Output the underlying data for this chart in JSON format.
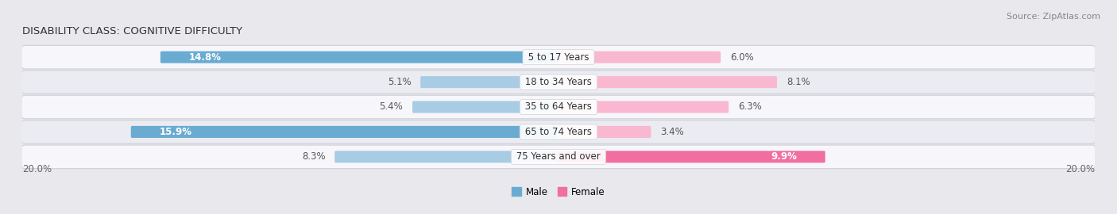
{
  "title": "DISABILITY CLASS: COGNITIVE DIFFICULTY",
  "source": "Source: ZipAtlas.com",
  "categories": [
    "5 to 17 Years",
    "18 to 34 Years",
    "35 to 64 Years",
    "65 to 74 Years",
    "75 Years and over"
  ],
  "male_values": [
    14.8,
    5.1,
    5.4,
    15.9,
    8.3
  ],
  "female_values": [
    6.0,
    8.1,
    6.3,
    3.4,
    9.9
  ],
  "male_color_dark": "#6aabd2",
  "male_color_light": "#a8cce4",
  "female_color_dark": "#f06fa0",
  "female_color_light": "#f9b8d0",
  "axis_max": 20.0,
  "fig_bg": "#e8e8ed",
  "row_bg_odd": "#f7f7fb",
  "row_bg_even": "#ebebf2",
  "label_fontsize": 8.5,
  "title_fontsize": 9.5,
  "source_fontsize": 8,
  "value_fontsize": 8.5
}
